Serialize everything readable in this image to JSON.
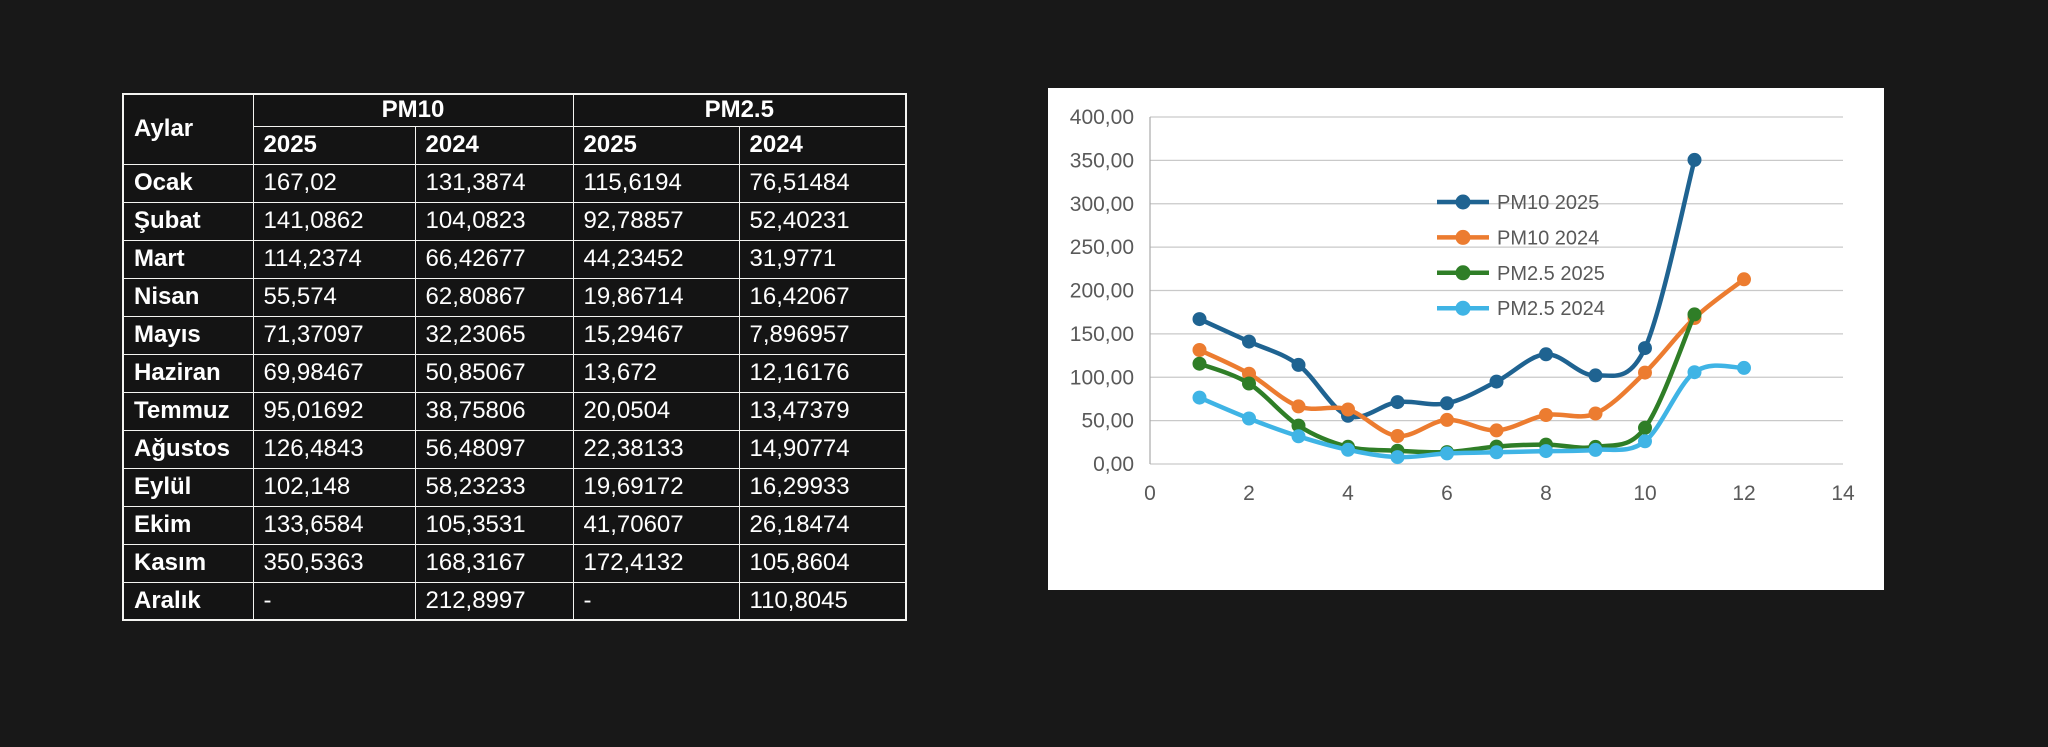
{
  "page": {
    "background": "#181818"
  },
  "table": {
    "corner_header": "Aylar",
    "groups": [
      "PM10",
      "PM2.5"
    ],
    "year_headers": [
      "2025",
      "2024",
      "2025",
      "2024"
    ],
    "border_color": "#f4f4f1",
    "text_color": "#ffffff",
    "rows": [
      {
        "month": "Ocak",
        "cells": [
          "167,02",
          "131,3874",
          "115,6194",
          "76,51484"
        ]
      },
      {
        "month": "Şubat",
        "cells": [
          "141,0862",
          "104,0823",
          "92,78857",
          "52,40231"
        ]
      },
      {
        "month": "Mart",
        "cells": [
          "114,2374",
          "66,42677",
          "44,23452",
          "31,9771"
        ]
      },
      {
        "month": "Nisan",
        "cells": [
          "55,574",
          "62,80867",
          "19,86714",
          "16,42067"
        ]
      },
      {
        "month": "Mayıs",
        "cells": [
          "71,37097",
          "32,23065",
          "15,29467",
          "7,896957"
        ]
      },
      {
        "month": "Haziran",
        "cells": [
          "69,98467",
          "50,85067",
          "13,672",
          "12,16176"
        ]
      },
      {
        "month": "Temmuz",
        "cells": [
          "95,01692",
          "38,75806",
          "20,0504",
          "13,47379"
        ]
      },
      {
        "month": "Ağustos",
        "cells": [
          "126,4843",
          "56,48097",
          "22,38133",
          "14,90774"
        ]
      },
      {
        "month": "Eylül",
        "cells": [
          "102,148",
          "58,23233",
          "19,69172",
          "16,29933"
        ]
      },
      {
        "month": "Ekim",
        "cells": [
          "133,6584",
          "105,3531",
          "41,70607",
          "26,18474"
        ]
      },
      {
        "month": "Kasım",
        "cells": [
          "350,5363",
          "168,3167",
          "172,4132",
          "105,8604"
        ]
      },
      {
        "month": "Aralık",
        "cells": [
          "-",
          "212,8997",
          "-",
          "110,8045"
        ]
      }
    ]
  },
  "chart_data": {
    "type": "line",
    "title": "",
    "xlabel": "",
    "ylabel": "",
    "xlim": [
      0,
      14
    ],
    "ylim": [
      0,
      400
    ],
    "x_ticks": [
      0,
      2,
      4,
      6,
      8,
      10,
      12,
      14
    ],
    "y_ticks": [
      0,
      50,
      100,
      150,
      200,
      250,
      300,
      350,
      400
    ],
    "y_tick_labels": [
      "0,00",
      "50,00",
      "100,00",
      "150,00",
      "200,00",
      "250,00",
      "300,00",
      "350,00",
      "400,00"
    ],
    "grid": "horizontal",
    "legend_position": "inside-top-center",
    "colors": {
      "panel_background": "#ffffff",
      "axis_text": "#595959",
      "gridline": "#c9c9c9",
      "axis_line": "#ababab"
    },
    "series": [
      {
        "name": "PM10 2025",
        "color": "#1f6391",
        "x": [
          1,
          2,
          3,
          4,
          5,
          6,
          7,
          8,
          9,
          10,
          11
        ],
        "values": [
          167.02,
          141.0862,
          114.2374,
          55.574,
          71.37097,
          69.98467,
          95.01692,
          126.4843,
          102.148,
          133.6584,
          350.5363
        ]
      },
      {
        "name": "PM10 2024",
        "color": "#ec7c30",
        "x": [
          1,
          2,
          3,
          4,
          5,
          6,
          7,
          8,
          9,
          10,
          11,
          12
        ],
        "values": [
          131.3874,
          104.0823,
          66.42677,
          62.80867,
          32.23065,
          50.85067,
          38.75806,
          56.48097,
          58.23233,
          105.3531,
          168.3167,
          212.8997
        ]
      },
      {
        "name": "PM2.5 2025",
        "color": "#2f7e27",
        "x": [
          1,
          2,
          3,
          4,
          5,
          6,
          7,
          8,
          9,
          10,
          11
        ],
        "values": [
          115.6194,
          92.78857,
          44.23452,
          19.86714,
          15.29467,
          13.672,
          20.0504,
          22.38133,
          19.69172,
          41.70607,
          172.4132
        ]
      },
      {
        "name": "PM2.5 2024",
        "color": "#3fb4e5",
        "x": [
          1,
          2,
          3,
          4,
          5,
          6,
          7,
          8,
          9,
          10,
          11,
          12
        ],
        "values": [
          76.51484,
          52.40231,
          31.9771,
          16.42067,
          7.896957,
          12.16176,
          13.47379,
          14.90774,
          16.29933,
          26.18474,
          105.8604,
          110.8045
        ]
      }
    ]
  }
}
